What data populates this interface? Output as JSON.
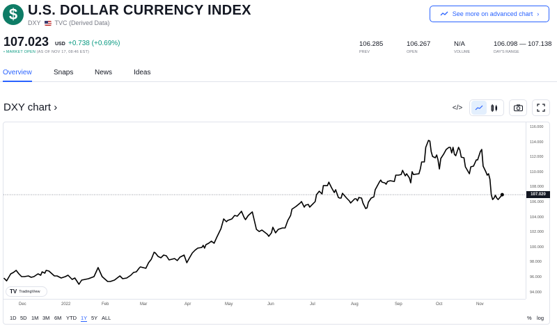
{
  "header": {
    "logo_glyph": "$",
    "title": "U.S. DOLLAR CURRENCY INDEX",
    "symbol": "DXY",
    "exchange": "TVC (Derived Data)",
    "price": "107.023",
    "currency": "USD",
    "change": "+0.738 (+0.69%)",
    "market_status": "MARKET OPEN",
    "as_of": "(AS OF NOV 17, 08:46 EST)",
    "advanced_chart_label": "See more on advanced chart",
    "stats": [
      {
        "value": "106.285",
        "label": "PREV"
      },
      {
        "value": "106.267",
        "label": "OPEN"
      },
      {
        "value": "N/A",
        "label": "VOLUME"
      },
      {
        "value": "106.098 — 107.138",
        "label": "DAY'S RANGE"
      }
    ]
  },
  "tabs": [
    {
      "label": "Overview",
      "active": true
    },
    {
      "label": "Snaps"
    },
    {
      "label": "News"
    },
    {
      "label": "Ideas"
    }
  ],
  "chart_title": "DXY chart ›",
  "toolbar": {
    "embed": "</>",
    "icons": [
      "embed-icon",
      "line-chart-icon",
      "candles-icon",
      "camera-icon",
      "fullscreen-icon"
    ]
  },
  "watermark": "TradingView",
  "ranges": [
    "1D",
    "5D",
    "1M",
    "3M",
    "6M",
    "YTD",
    "1Y",
    "5Y",
    "ALL"
  ],
  "active_range": "1Y",
  "scale_buttons": [
    "%",
    "log"
  ],
  "colors": {
    "accent": "#2962ff",
    "up": "#089981",
    "logo": "#0e7c66",
    "line": "#000000"
  },
  "chart_data": {
    "type": "line",
    "ylim": [
      93.5,
      116.5
    ],
    "last_value_label": "107.020",
    "yticks": [
      "116.000",
      "114.000",
      "112.000",
      "110.000",
      "108.000",
      "106.000",
      "104.000",
      "102.000",
      "100.000",
      "98.000",
      "96.000",
      "94.000"
    ],
    "xticks": [
      "Dec",
      "2022",
      "Feb",
      "Mar",
      "Apr",
      "May",
      "Jun",
      "Jul",
      "Aug",
      "Sep",
      "Oct",
      "Nov"
    ],
    "points": [
      [
        "2021-11-17",
        95.94
      ],
      [
        "2021-11-19",
        95.57
      ],
      [
        "2021-11-22",
        96.5
      ],
      [
        "2021-11-24",
        96.68
      ],
      [
        "2021-11-26",
        96.96
      ],
      [
        "2021-11-28",
        96.5
      ],
      [
        "2021-11-30",
        96.13
      ],
      [
        "2021-12-02",
        96.13
      ],
      [
        "2021-12-05",
        96.22
      ],
      [
        "2021-12-07",
        96.04
      ],
      [
        "2021-12-09",
        96.13
      ],
      [
        "2021-12-12",
        96.5
      ],
      [
        "2021-12-14",
        96.31
      ],
      [
        "2021-12-15",
        96.77
      ],
      [
        "2021-12-17",
        96.59
      ],
      [
        "2021-12-18",
        96.96
      ],
      [
        "2021-12-20",
        96.87
      ],
      [
        "2021-12-24",
        96.22
      ],
      [
        "2021-12-26",
        96.22
      ],
      [
        "2021-12-29",
        95.94
      ],
      [
        "2022-01-01",
        96.13
      ],
      [
        "2022-01-03",
        96.31
      ],
      [
        "2022-01-06",
        95.76
      ],
      [
        "2022-01-08",
        95.94
      ],
      [
        "2022-01-11",
        95.11
      ],
      [
        "2022-01-13",
        95.67
      ],
      [
        "2022-01-18",
        95.85
      ],
      [
        "2022-01-22",
        96.13
      ],
      [
        "2022-01-25",
        97.33
      ],
      [
        "2022-01-28",
        96.13
      ],
      [
        "2022-02-01",
        95.48
      ],
      [
        "2022-02-03",
        95.48
      ],
      [
        "2022-02-06",
        95.67
      ],
      [
        "2022-02-10",
        96.22
      ],
      [
        "2022-02-12",
        95.85
      ],
      [
        "2022-02-15",
        95.94
      ],
      [
        "2022-02-18",
        96.31
      ],
      [
        "2022-02-20",
        96.68
      ],
      [
        "2022-02-22",
        96.77
      ],
      [
        "2022-02-24",
        97.24
      ],
      [
        "2022-02-25",
        97.42
      ],
      [
        "2022-03-01",
        97.24
      ],
      [
        "2022-03-03",
        97.98
      ],
      [
        "2022-03-05",
        98.44
      ],
      [
        "2022-03-07",
        99.36
      ],
      [
        "2022-03-08",
        99.27
      ],
      [
        "2022-03-10",
        98.81
      ],
      [
        "2022-03-12",
        98.63
      ],
      [
        "2022-03-14",
        98.99
      ],
      [
        "2022-03-16",
        98.9
      ],
      [
        "2022-03-18",
        98.35
      ],
      [
        "2022-03-22",
        98.53
      ],
      [
        "2022-03-24",
        98.26
      ],
      [
        "2022-03-26",
        98.72
      ],
      [
        "2022-03-29",
        98.99
      ],
      [
        "2022-03-31",
        97.98
      ],
      [
        "2022-04-02",
        98.63
      ],
      [
        "2022-04-04",
        99.27
      ],
      [
        "2022-04-06",
        99.64
      ],
      [
        "2022-04-08",
        99.92
      ],
      [
        "2022-04-11",
        100.01
      ],
      [
        "2022-04-12",
        100.29
      ],
      [
        "2022-04-13",
        99.92
      ],
      [
        "2022-04-14",
        100.38
      ],
      [
        "2022-04-16",
        100.57
      ],
      [
        "2022-04-18",
        100.84
      ],
      [
        "2022-04-20",
        100.57
      ],
      [
        "2022-04-22",
        101.39
      ],
      [
        "2022-04-25",
        102.5
      ],
      [
        "2022-04-27",
        103.8
      ],
      [
        "2022-04-29",
        103.43
      ],
      [
        "2022-04-30",
        103.61
      ],
      [
        "2022-05-03",
        103.8
      ],
      [
        "2022-05-05",
        104.26
      ],
      [
        "2022-05-07",
        104.17
      ],
      [
        "2022-05-10",
        104.82
      ],
      [
        "2022-05-12",
        103.98
      ],
      [
        "2022-05-13",
        103.71
      ],
      [
        "2022-05-15",
        104.26
      ],
      [
        "2022-05-18",
        104.73
      ],
      [
        "2022-05-21",
        102.41
      ],
      [
        "2022-05-23",
        102.13
      ],
      [
        "2022-05-25",
        102.32
      ],
      [
        "2022-05-29",
        101.76
      ],
      [
        "2022-05-30",
        101.49
      ],
      [
        "2022-06-01",
        101.95
      ],
      [
        "2022-06-02",
        102.69
      ],
      [
        "2022-06-04",
        101.95
      ],
      [
        "2022-06-06",
        102.41
      ],
      [
        "2022-06-09",
        102.6
      ],
      [
        "2022-06-11",
        102.6
      ],
      [
        "2022-06-13",
        103.61
      ],
      [
        "2022-06-15",
        104.26
      ],
      [
        "2022-06-16",
        105.09
      ],
      [
        "2022-06-19",
        105.46
      ],
      [
        "2022-06-22",
        105.92
      ],
      [
        "2022-06-23",
        106.11
      ],
      [
        "2022-06-25",
        105.37
      ],
      [
        "2022-06-26",
        105.64
      ],
      [
        "2022-06-28",
        105.73
      ],
      [
        "2022-06-29",
        105.37
      ],
      [
        "2022-07-01",
        105.73
      ],
      [
        "2022-07-03",
        106.11
      ],
      [
        "2022-07-04",
        107.03
      ],
      [
        "2022-07-06",
        107.49
      ],
      [
        "2022-07-08",
        107.12
      ],
      [
        "2022-07-09",
        108.23
      ],
      [
        "2022-07-12",
        108.23
      ],
      [
        "2022-07-13",
        108.69
      ],
      [
        "2022-07-15",
        107.95
      ],
      [
        "2022-07-17",
        107.31
      ],
      [
        "2022-07-18",
        107.68
      ],
      [
        "2022-07-20",
        106.66
      ],
      [
        "2022-07-21",
        106.57
      ],
      [
        "2022-07-22",
        106.57
      ],
      [
        "2022-07-23",
        107.21
      ],
      [
        "2022-07-26",
        106.57
      ],
      [
        "2022-07-28",
        106.2
      ],
      [
        "2022-07-29",
        105.92
      ],
      [
        "2022-08-01",
        106.48
      ],
      [
        "2022-08-02",
        106.48
      ],
      [
        "2022-08-03",
        106.2
      ],
      [
        "2022-08-04",
        106.66
      ],
      [
        "2022-08-06",
        106.57
      ],
      [
        "2022-08-07",
        105.92
      ],
      [
        "2022-08-09",
        105.19
      ],
      [
        "2022-08-10",
        105.28
      ],
      [
        "2022-08-11",
        106.02
      ],
      [
        "2022-08-13",
        106.57
      ],
      [
        "2022-08-15",
        106.75
      ],
      [
        "2022-08-16",
        107.68
      ],
      [
        "2022-08-19",
        108.69
      ],
      [
        "2022-08-20",
        108.97
      ],
      [
        "2022-08-21",
        108.69
      ],
      [
        "2022-08-23",
        108.6
      ],
      [
        "2022-08-24",
        108.42
      ],
      [
        "2022-08-25",
        108.78
      ],
      [
        "2022-08-27",
        108.88
      ],
      [
        "2022-08-30",
        108.78
      ],
      [
        "2022-08-31",
        109.62
      ],
      [
        "2022-09-02",
        109.62
      ],
      [
        "2022-09-04",
        109.71
      ],
      [
        "2022-09-05",
        110.26
      ],
      [
        "2022-09-07",
        109.53
      ],
      [
        "2022-09-08",
        109.81
      ],
      [
        "2022-09-10",
        109.25
      ],
      [
        "2022-09-11",
        108.6
      ],
      [
        "2022-09-12",
        110.08
      ],
      [
        "2022-09-13",
        109.71
      ],
      [
        "2022-09-17",
        109.81
      ],
      [
        "2022-09-18",
        110.45
      ],
      [
        "2022-09-19",
        111.38
      ],
      [
        "2022-09-21",
        111.38
      ],
      [
        "2022-09-22",
        113.32
      ],
      [
        "2022-09-24",
        114.24
      ],
      [
        "2022-09-25",
        114.15
      ],
      [
        "2022-09-26",
        112.76
      ],
      [
        "2022-09-27",
        112.11
      ],
      [
        "2022-09-29",
        111.93
      ],
      [
        "2022-09-30",
        112.3
      ],
      [
        "2022-10-01",
        111.65
      ],
      [
        "2022-10-02",
        110.45
      ],
      [
        "2022-10-03",
        111.84
      ],
      [
        "2022-10-05",
        112.39
      ],
      [
        "2022-10-07",
        113.04
      ],
      [
        "2022-10-09",
        113.32
      ],
      [
        "2022-10-10",
        113.32
      ],
      [
        "2022-10-11",
        112.58
      ],
      [
        "2022-10-12",
        113.32
      ],
      [
        "2022-10-13",
        112.39
      ],
      [
        "2022-10-14",
        112.21
      ],
      [
        "2022-10-16",
        113.32
      ],
      [
        "2022-10-17",
        112.95
      ],
      [
        "2022-10-18",
        112.02
      ],
      [
        "2022-10-20",
        111.93
      ],
      [
        "2022-10-21",
        110.73
      ],
      [
        "2022-10-24",
        109.81
      ],
      [
        "2022-10-25",
        110.73
      ],
      [
        "2022-10-27",
        110.82
      ],
      [
        "2022-10-29",
        111.65
      ],
      [
        "2022-10-30",
        111.65
      ],
      [
        "2022-11-01",
        112.76
      ],
      [
        "2022-11-02",
        113.04
      ],
      [
        "2022-11-03",
        110.82
      ],
      [
        "2022-11-05",
        110.08
      ],
      [
        "2022-11-06",
        109.62
      ],
      [
        "2022-11-07",
        109.81
      ],
      [
        "2022-11-08",
        109.07
      ],
      [
        "2022-11-09",
        107.03
      ],
      [
        "2022-11-10",
        106.38
      ],
      [
        "2022-11-11",
        106.57
      ],
      [
        "2022-11-12",
        106.94
      ],
      [
        "2022-11-13",
        106.57
      ],
      [
        "2022-11-14",
        106.38
      ],
      [
        "2022-11-17",
        107.02
      ]
    ]
  }
}
